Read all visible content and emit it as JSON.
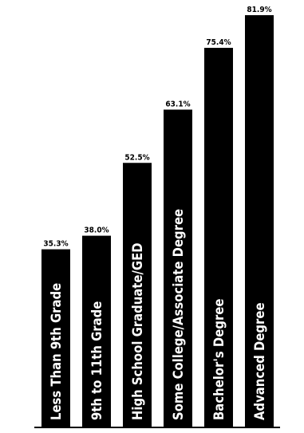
{
  "chart_data": {
    "type": "bar",
    "categories": [
      "Less Than 9th Grade",
      "9th to 11th Grade",
      "High School Graduate/GED",
      "Some College/Associate Degree",
      "Bachelor's Degree",
      "Advanced Degree"
    ],
    "values": [
      35.3,
      38.0,
      52.5,
      63.1,
      75.4,
      81.9
    ],
    "value_labels": [
      "35.3%",
      "38.0%",
      "52.5%",
      "63.1%",
      "75.4%",
      "81.9%"
    ],
    "title": "",
    "xlabel": "",
    "ylabel": "",
    "ylim": [
      0,
      100
    ],
    "grid": false,
    "bar_color": "#000000",
    "label_color": "#ffffff"
  }
}
